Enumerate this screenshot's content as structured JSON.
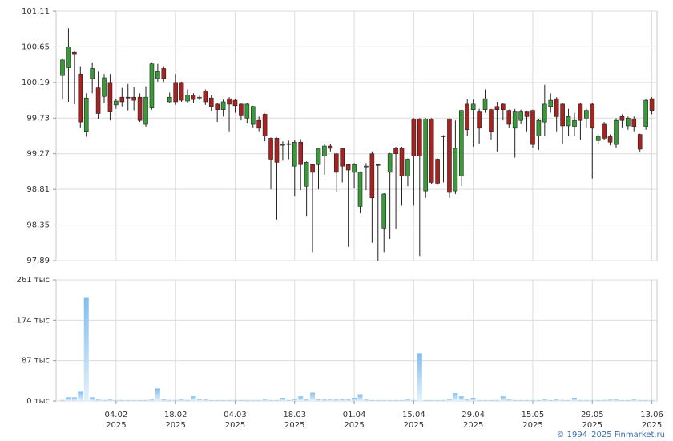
{
  "chart_data": [
    {
      "type": "candlestick",
      "up_color": "#3a9a3a",
      "down_color": "#a82222",
      "outline": "#222222",
      "ylim": [
        97.89,
        101.11
      ],
      "yticks": [
        {
          "value": 97.89,
          "label": "97,89"
        },
        {
          "value": 98.35,
          "label": "98,35"
        },
        {
          "value": 98.81,
          "label": "98,81"
        },
        {
          "value": 99.27,
          "label": "99,27"
        },
        {
          "value": 99.73,
          "label": "99,73"
        },
        {
          "value": 100.19,
          "label": "100,19"
        },
        {
          "value": 100.65,
          "label": "100,65"
        },
        {
          "value": 101.11,
          "label": "101,11"
        }
      ],
      "grid": true,
      "open": [
        100.28,
        100.38,
        100.58,
        100.3,
        99.55,
        100.24,
        100.12,
        100.01,
        100.19,
        99.9,
        100.0,
        100.0,
        100.0,
        100.0,
        99.65,
        99.86,
        100.24,
        100.37,
        99.94,
        100.19,
        100.19,
        99.95,
        100.03,
        100.0,
        100.08,
        99.99,
        99.91,
        99.84,
        99.98,
        99.96,
        99.91,
        99.73,
        99.65,
        99.7,
        99.78,
        99.47,
        99.47,
        99.39,
        99.4,
        99.11,
        99.42,
        98.85,
        99.13,
        99.13,
        99.24,
        99.37,
        99.27,
        99.34,
        99.13,
        99.03,
        98.59,
        99.11,
        99.27,
        99.13,
        98.31,
        99.03,
        99.34,
        99.34,
        98.98,
        99.72,
        99.72,
        98.79,
        99.72,
        99.2,
        99.5,
        99.72,
        98.79,
        98.98,
        99.91,
        99.84,
        99.81,
        99.84,
        99.84,
        99.88,
        99.91,
        99.83,
        99.6,
        99.7,
        99.81,
        99.83,
        99.5,
        99.68,
        99.88,
        99.98,
        99.91,
        99.63,
        99.62,
        99.91,
        99.73,
        99.91,
        99.44,
        99.65,
        99.49,
        99.39,
        99.75,
        99.63,
        99.72,
        99.52,
        99.62,
        99.98
      ],
      "high": [
        100.5,
        100.89,
        100.59,
        100.4,
        100.05,
        100.45,
        100.33,
        100.3,
        100.3,
        99.98,
        100.12,
        100.17,
        100.13,
        100.05,
        100.14,
        100.45,
        100.43,
        100.4,
        100.06,
        100.3,
        100.2,
        100.1,
        100.05,
        100.02,
        100.1,
        100.03,
        99.92,
        99.97,
        100.0,
        99.98,
        99.92,
        99.93,
        99.89,
        99.75,
        99.79,
        99.48,
        99.48,
        99.43,
        99.44,
        99.45,
        99.46,
        99.17,
        99.14,
        99.35,
        99.4,
        99.4,
        99.28,
        99.35,
        99.14,
        99.15,
        99.04,
        99.15,
        99.3,
        99.14,
        98.76,
        99.28,
        99.36,
        99.36,
        99.21,
        99.73,
        99.73,
        99.73,
        99.73,
        99.21,
        99.51,
        99.73,
        99.7,
        99.84,
        99.97,
        99.97,
        99.85,
        100.1,
        99.85,
        99.94,
        99.93,
        99.84,
        99.85,
        99.84,
        99.82,
        99.84,
        99.72,
        100.16,
        100.05,
        100.0,
        99.93,
        99.85,
        99.8,
        99.93,
        99.85,
        99.93,
        99.52,
        99.68,
        99.52,
        99.73,
        99.78,
        99.75,
        99.75,
        99.53,
        99.97,
        100.0
      ],
      "low": [
        99.97,
        99.94,
        99.91,
        99.6,
        99.49,
        100.05,
        99.72,
        99.92,
        99.7,
        99.85,
        99.88,
        99.83,
        99.83,
        99.68,
        99.62,
        99.84,
        100.2,
        100.2,
        99.93,
        99.9,
        99.94,
        99.92,
        99.93,
        99.96,
        99.9,
        99.82,
        99.68,
        99.75,
        99.55,
        99.8,
        99.7,
        99.66,
        99.6,
        99.55,
        99.43,
        98.81,
        98.42,
        99.18,
        99.2,
        98.72,
        98.8,
        98.46,
        98.0,
        98.81,
        99.0,
        99.3,
        98.78,
        98.9,
        98.07,
        98.82,
        98.5,
        98.8,
        98.12,
        97.89,
        98.0,
        98.17,
        98.3,
        98.6,
        98.85,
        98.6,
        97.95,
        98.7,
        98.88,
        98.87,
        98.9,
        98.7,
        98.75,
        98.85,
        99.5,
        99.36,
        99.4,
        99.8,
        99.45,
        99.3,
        99.7,
        99.6,
        99.22,
        99.65,
        99.55,
        99.35,
        99.32,
        99.5,
        99.8,
        99.55,
        99.4,
        99.5,
        99.5,
        99.45,
        99.6,
        98.95,
        99.4,
        99.45,
        99.38,
        99.35,
        99.6,
        99.58,
        99.55,
        99.3,
        99.58,
        99.78
      ],
      "close": [
        100.48,
        100.65,
        100.56,
        99.68,
        99.99,
        100.37,
        99.79,
        100.25,
        99.81,
        99.95,
        99.94,
        99.99,
        99.96,
        99.7,
        100.0,
        100.43,
        100.33,
        100.24,
        100.0,
        99.94,
        99.96,
        100.03,
        99.97,
        100.0,
        99.94,
        99.88,
        99.84,
        99.94,
        99.91,
        99.89,
        99.76,
        99.91,
        99.88,
        99.6,
        99.5,
        99.2,
        99.16,
        99.39,
        99.39,
        99.42,
        99.13,
        99.16,
        99.03,
        99.34,
        99.37,
        99.34,
        99.03,
        99.11,
        99.06,
        99.13,
        99.03,
        99.11,
        98.7,
        99.12,
        98.75,
        99.27,
        99.27,
        98.98,
        99.2,
        99.24,
        99.24,
        99.72,
        98.9,
        98.89,
        99.49,
        98.77,
        99.34,
        99.83,
        99.58,
        99.91,
        99.6,
        99.98,
        99.55,
        99.84,
        99.84,
        99.65,
        99.81,
        99.81,
        99.75,
        99.39,
        99.7,
        99.91,
        99.96,
        99.75,
        99.63,
        99.75,
        99.7,
        99.7,
        99.83,
        99.6,
        99.49,
        99.47,
        99.42,
        99.7,
        99.7,
        99.73,
        99.62,
        99.33,
        99.96,
        99.83
      ]
    },
    {
      "type": "bar",
      "color": "#7fbdf0",
      "ylim": [
        0,
        261
      ],
      "yticks": [
        {
          "value": 0,
          "label": "0 тыс"
        },
        {
          "value": 87,
          "label": "87 тыс"
        },
        {
          "value": 174,
          "label": "174 тыс"
        },
        {
          "value": 261,
          "label": "261 тыс"
        }
      ],
      "grid": true,
      "categories": [
        null,
        null,
        null,
        null,
        null,
        null,
        null,
        null,
        null,
        "04.02\n2025",
        null,
        null,
        null,
        null,
        null,
        null,
        null,
        null,
        null,
        "18.02\n2025",
        null,
        null,
        null,
        null,
        null,
        null,
        null,
        null,
        null,
        "04.03\n2025",
        null,
        null,
        null,
        null,
        null,
        null,
        null,
        null,
        null,
        "18.03\n2025",
        null,
        null,
        null,
        null,
        null,
        null,
        null,
        null,
        null,
        "01.04\n2025",
        null,
        null,
        null,
        null,
        null,
        null,
        null,
        null,
        null,
        "15.04\n2025",
        null,
        null,
        null,
        null,
        null,
        null,
        null,
        null,
        null,
        "29.04\n2025",
        null,
        null,
        null,
        null,
        null,
        null,
        null,
        null,
        null,
        "15.05\n2025",
        null,
        null,
        null,
        null,
        null,
        null,
        null,
        null,
        null,
        "29.05\n2025",
        null,
        null,
        null,
        null,
        null,
        null,
        null,
        null,
        null,
        "13.06\n2025"
      ],
      "values": [
        2,
        8,
        8,
        20,
        222,
        8,
        3,
        2,
        3,
        2,
        2,
        2,
        2,
        2,
        2,
        3,
        27,
        4,
        2,
        2,
        3,
        2,
        10,
        5,
        3,
        2,
        2,
        2,
        2,
        2,
        2,
        2,
        2,
        2,
        3,
        2,
        2,
        7,
        2,
        4,
        10,
        3,
        18,
        4,
        3,
        5,
        3,
        4,
        3,
        7,
        13,
        3,
        2,
        2,
        2,
        2,
        2,
        2,
        3,
        2,
        103,
        2,
        2,
        2,
        2,
        5,
        17,
        10,
        3,
        7,
        2,
        2,
        2,
        2,
        10,
        3,
        2,
        2,
        2,
        2,
        2,
        3,
        2,
        3,
        2,
        2,
        7,
        2,
        2,
        2,
        2,
        2,
        3,
        3,
        2,
        2,
        3,
        2,
        2,
        2
      ]
    }
  ],
  "footer": "© 1994–2025 Finmarket.ru"
}
